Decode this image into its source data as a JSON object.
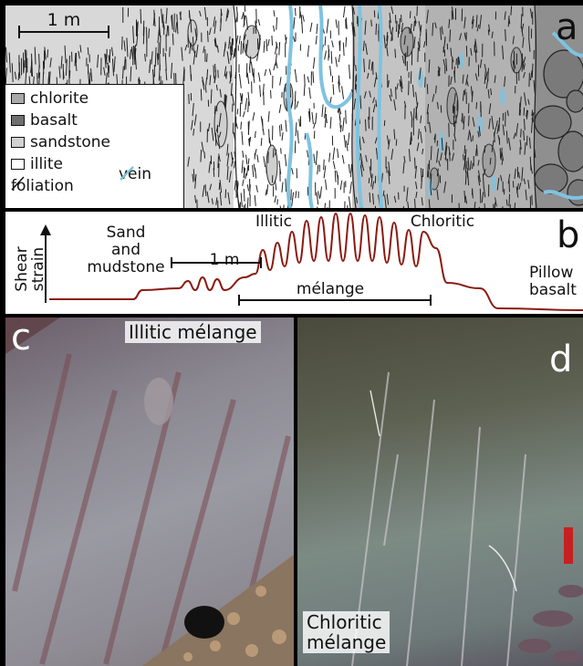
{
  "panel_a": {
    "letter": "a",
    "scale_label": "1 m",
    "legend": [
      {
        "label": "chlorite",
        "color": "#a9a9a9"
      },
      {
        "label": "basalt",
        "color": "#6f6f6f"
      },
      {
        "label": "sandstone",
        "color": "#d2d2d2"
      },
      {
        "label": "illite",
        "color": "#ffffff"
      },
      {
        "label": "foliation",
        "icon": "foliation-line-icon"
      }
    ],
    "vein_label": "vein",
    "colors": {
      "vein": "#7fc3e0",
      "chlorite": "#a9a9a9",
      "basalt": "#6f6f6f",
      "sandstone": "#d2d2d2"
    }
  },
  "panel_b": {
    "letter": "b",
    "axis_label_line1": "Shear",
    "axis_label_line2": "strain",
    "scale_label": "1 m",
    "zone_left_line1": "Sand",
    "zone_left_line2": "and",
    "zone_left_line3": "mudstone",
    "zone_illitic": "Illitic",
    "zone_chloritic": "Chloritic",
    "zone_melange": "mélange",
    "zone_right_line1": "Pillow",
    "zone_right_line2": "basalt",
    "curve_color": "#8b1a10"
  },
  "panel_c": {
    "letter": "c",
    "label": "Illitic mélange"
  },
  "panel_d": {
    "letter": "d",
    "label_line1": "Chloritic",
    "label_line2": "mélange"
  }
}
